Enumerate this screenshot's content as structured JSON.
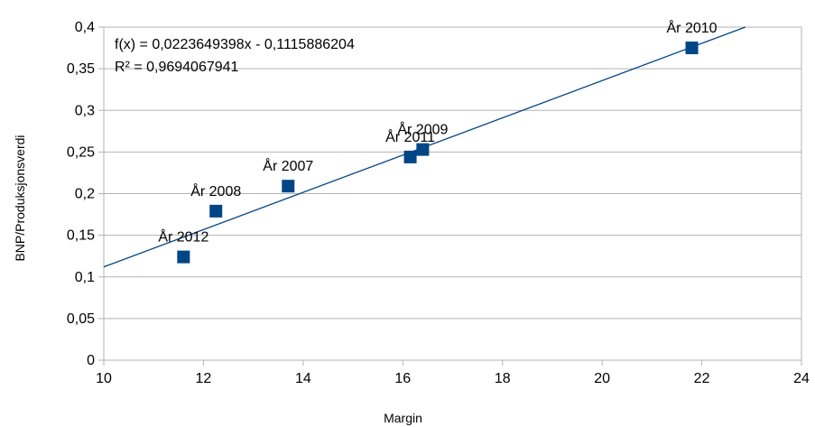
{
  "chart_data": {
    "type": "scatter",
    "xlabel": "Margin",
    "ylabel": "BNP/Produksjonsverdi",
    "xlim": [
      10,
      24
    ],
    "ylim": [
      0,
      0.4
    ],
    "x_ticks": [
      10,
      12,
      14,
      16,
      18,
      20,
      22,
      24
    ],
    "x_tick_labels": [
      "10",
      "12",
      "14",
      "16",
      "18",
      "20",
      "22",
      "24"
    ],
    "y_ticks": [
      0,
      0.05,
      0.1,
      0.15,
      0.2,
      0.25,
      0.3,
      0.35,
      0.4
    ],
    "y_tick_labels": [
      "0",
      "0,05",
      "0,1",
      "0,15",
      "0,2",
      "0,25",
      "0,3",
      "0,35",
      "0,4"
    ],
    "grid": "horizontal",
    "marker_color": "#004586",
    "trendline_color": "#004586",
    "points": [
      {
        "label": "År 2012",
        "x": 11.6,
        "y": 0.124
      },
      {
        "label": "År 2008",
        "x": 12.25,
        "y": 0.179
      },
      {
        "label": "År 2007",
        "x": 13.7,
        "y": 0.209
      },
      {
        "label": "År 2011",
        "x": 16.15,
        "y": 0.244
      },
      {
        "label": "År 2009",
        "x": 16.4,
        "y": 0.253
      },
      {
        "label": "År 2010",
        "x": 21.8,
        "y": 0.375
      }
    ],
    "trendline": {
      "slope": 0.0223649398,
      "intercept": -0.1115886204,
      "equation_text": "f(x) = 0,0223649398x - 0,1115886204",
      "r2_text": "R² = 0,9694067941"
    }
  }
}
